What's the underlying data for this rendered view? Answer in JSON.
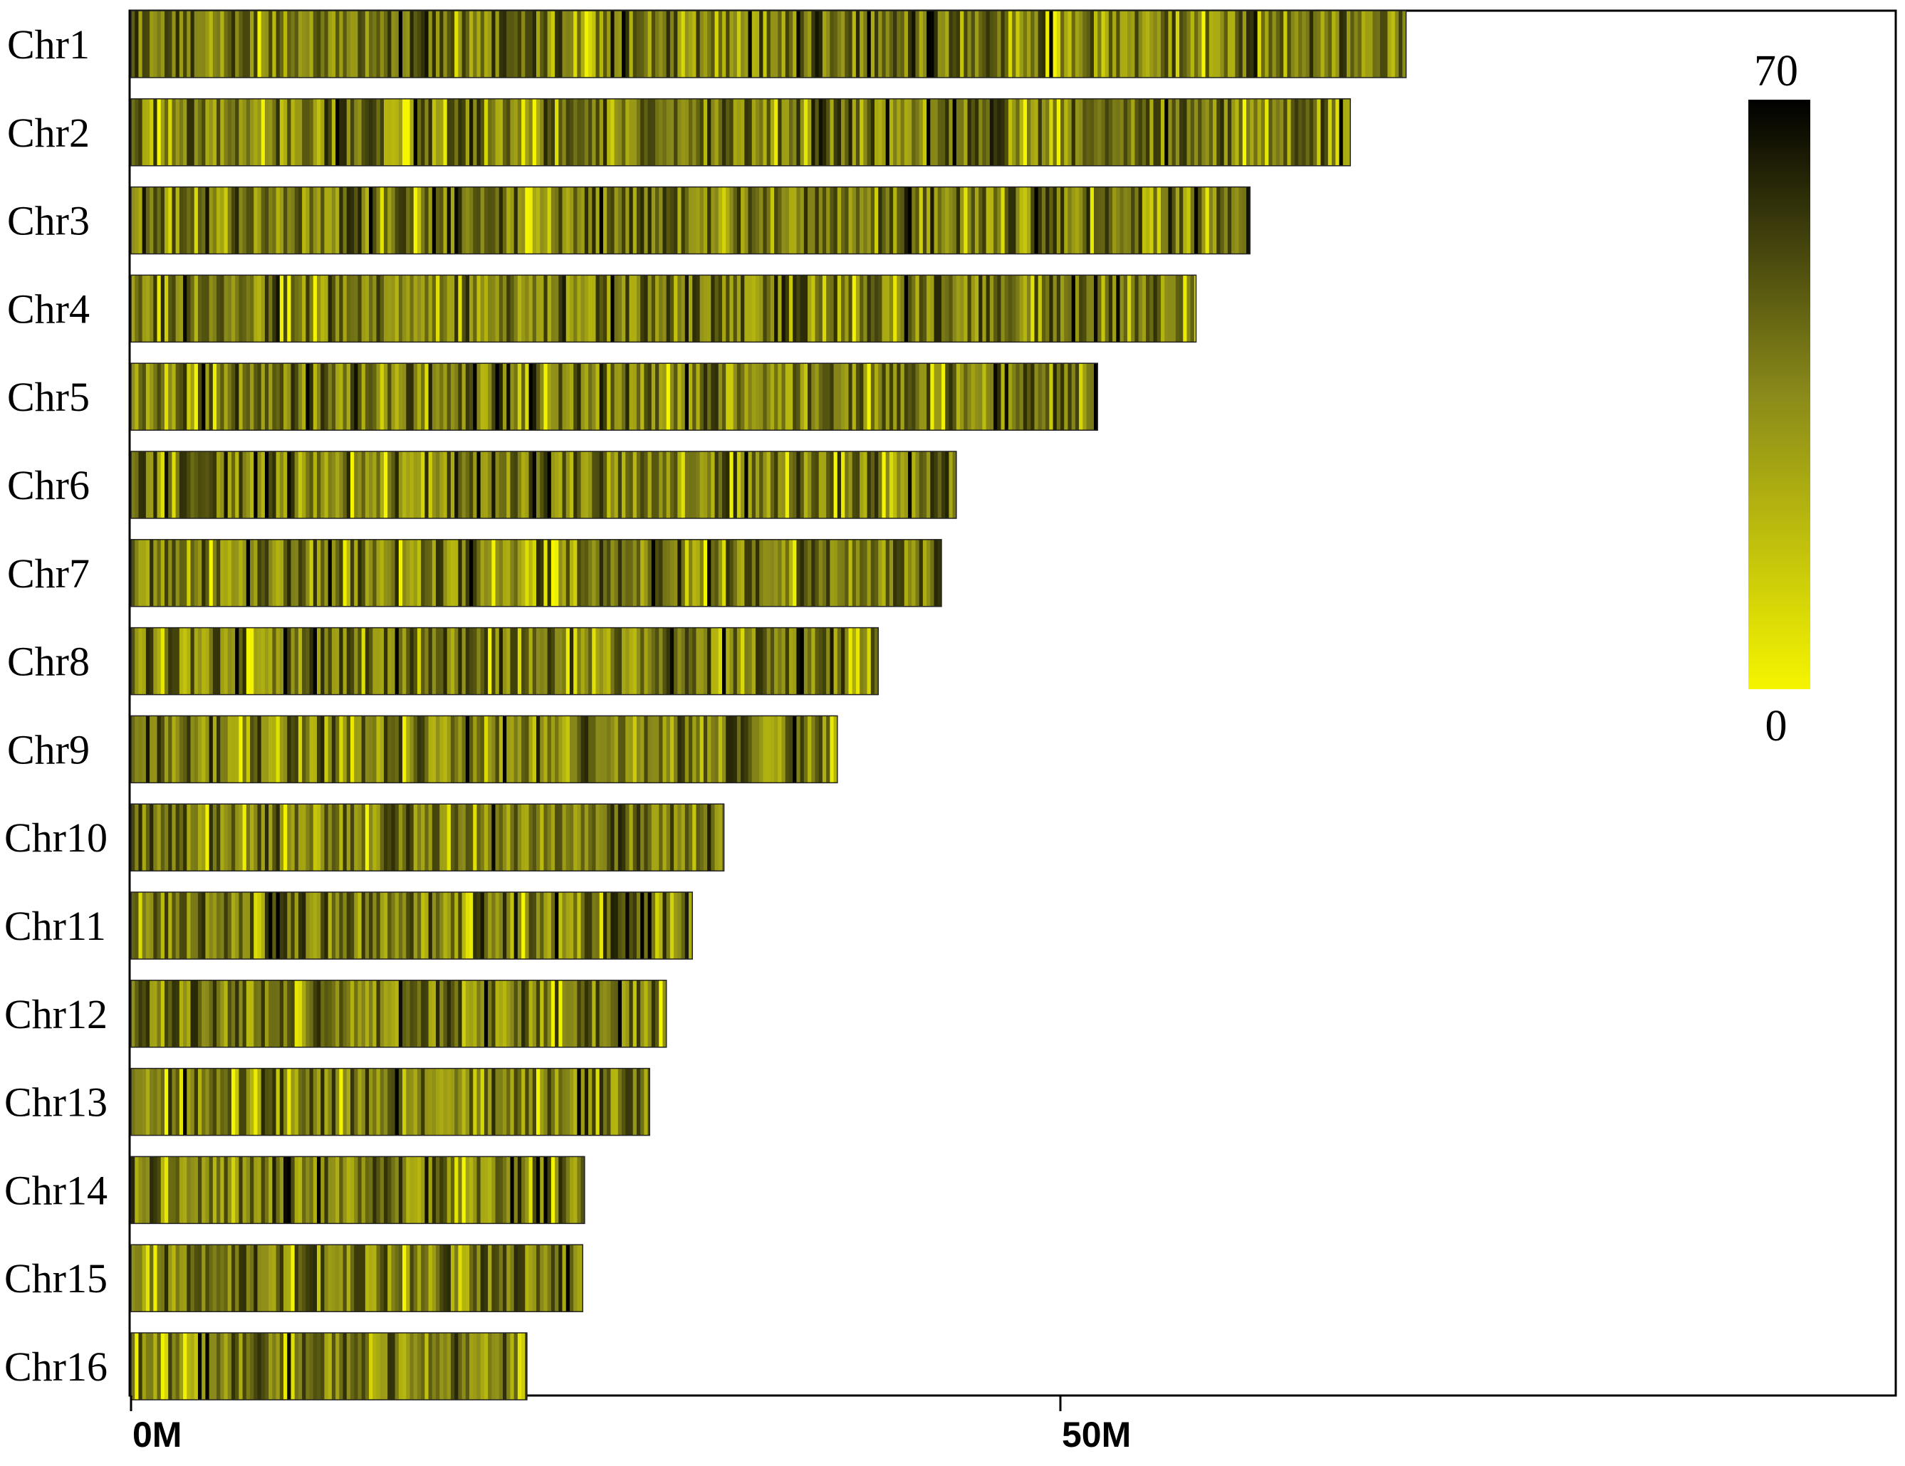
{
  "chart_data": {
    "type": "heatmap",
    "title": "",
    "xlabel": "",
    "ylabel": "",
    "x_unit": "Mb",
    "xlim": [
      0,
      95
    ],
    "x_ticks": [
      {
        "value": 0,
        "label": "0M"
      },
      {
        "value": 50,
        "label": "50M"
      }
    ],
    "chromosomes": [
      {
        "name": "Chr1",
        "length": 68.6
      },
      {
        "name": "Chr2",
        "length": 65.6
      },
      {
        "name": "Chr3",
        "length": 60.2
      },
      {
        "name": "Chr4",
        "length": 57.3
      },
      {
        "name": "Chr5",
        "length": 52.0
      },
      {
        "name": "Chr6",
        "length": 44.4
      },
      {
        "name": "Chr7",
        "length": 43.6
      },
      {
        "name": "Chr8",
        "length": 40.2
      },
      {
        "name": "Chr9",
        "length": 38.0
      },
      {
        "name": "Chr10",
        "length": 31.9
      },
      {
        "name": "Chr11",
        "length": 30.2
      },
      {
        "name": "Chr12",
        "length": 28.8
      },
      {
        "name": "Chr13",
        "length": 27.9
      },
      {
        "name": "Chr14",
        "length": 24.4
      },
      {
        "name": "Chr15",
        "length": 24.3
      },
      {
        "name": "Chr16",
        "length": 21.3
      }
    ],
    "colorbar": {
      "min": 0,
      "max": 70,
      "min_label": "0",
      "max_label": "70",
      "low_color": "#f5f500",
      "mid_color": "#8a8a1a",
      "high_color": "#000000"
    },
    "bin_size_mb": 0.2
  }
}
